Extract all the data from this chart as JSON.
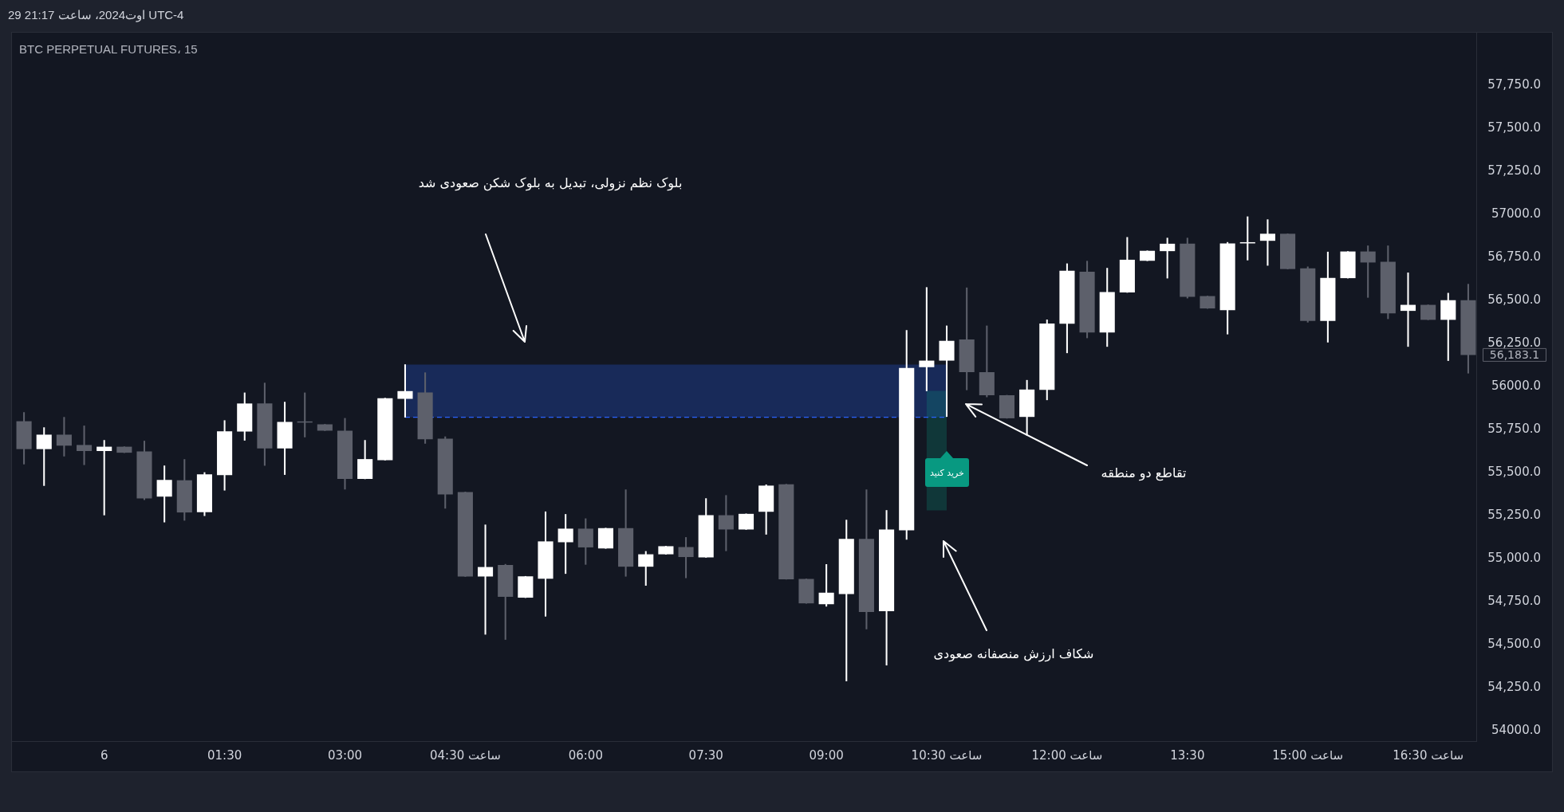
{
  "chart_data": {
    "type": "candlestick",
    "title": "BTC PERPETUAL FUTURES، 15",
    "x": [
      "2024-08-05T23:00",
      "2024-08-05T23:15",
      "2024-08-05T23:30",
      "2024-08-05T23:45",
      "2024-08-06T00:00",
      "2024-08-06T00:15",
      "2024-08-06T00:30",
      "2024-08-06T00:45",
      "2024-08-06T01:00",
      "2024-08-06T01:15",
      "2024-08-06T01:30",
      "2024-08-06T01:45",
      "2024-08-06T02:00",
      "2024-08-06T02:15",
      "2024-08-06T02:30",
      "2024-08-06T02:45",
      "2024-08-06T03:00",
      "2024-08-06T03:15",
      "2024-08-06T03:30",
      "2024-08-06T03:45",
      "2024-08-06T04:00",
      "2024-08-06T04:15",
      "2024-08-06T04:30",
      "2024-08-06T04:45",
      "2024-08-06T05:00",
      "2024-08-06T05:15",
      "2024-08-06T05:30",
      "2024-08-06T05:45",
      "2024-08-06T06:00",
      "2024-08-06T06:15",
      "2024-08-06T06:30",
      "2024-08-06T06:45",
      "2024-08-06T07:00",
      "2024-08-06T07:15",
      "2024-08-06T07:30",
      "2024-08-06T07:45",
      "2024-08-06T08:00",
      "2024-08-06T08:15",
      "2024-08-06T08:30",
      "2024-08-06T08:45",
      "2024-08-06T09:00",
      "2024-08-06T09:15",
      "2024-08-06T09:30",
      "2024-08-06T09:45",
      "2024-08-06T10:00",
      "2024-08-06T10:15",
      "2024-08-06T10:30",
      "2024-08-06T10:45",
      "2024-08-06T11:00",
      "2024-08-06T11:15",
      "2024-08-06T11:30",
      "2024-08-06T11:45",
      "2024-08-06T12:00",
      "2024-08-06T12:15",
      "2024-08-06T12:30",
      "2024-08-06T12:45",
      "2024-08-06T13:00",
      "2024-08-06T13:15",
      "2024-08-06T13:30",
      "2024-08-06T13:45",
      "2024-08-06T14:00",
      "2024-08-06T14:15",
      "2024-08-06T14:30",
      "2024-08-06T14:45",
      "2024-08-06T15:00",
      "2024-08-06T15:15",
      "2024-08-06T15:30",
      "2024-08-06T15:45",
      "2024-08-06T16:00",
      "2024-08-06T16:15",
      "2024-08-06T16:30",
      "2024-08-06T16:45",
      "2024-08-06T17:00"
    ],
    "ohlc": [
      [
        55798,
        55849,
        55549,
        55636
      ],
      [
        55636,
        55761,
        55424,
        55720
      ],
      [
        55720,
        55821,
        55595,
        55656
      ],
      [
        55660,
        55771,
        55545,
        55625
      ],
      [
        55625,
        55687,
        55253,
        55650
      ],
      [
        55650,
        55650,
        55615,
        55615
      ],
      [
        55623,
        55683,
        55342,
        55350
      ],
      [
        55360,
        55539,
        55212,
        55457
      ],
      [
        55455,
        55576,
        55222,
        55268
      ],
      [
        55270,
        55500,
        55249,
        55490
      ],
      [
        55485,
        55802,
        55397,
        55740
      ],
      [
        55738,
        55963,
        55687,
        55901
      ],
      [
        55901,
        56020,
        55541,
        55640
      ],
      [
        55640,
        55909,
        55488,
        55794
      ],
      [
        55794,
        55963,
        55706,
        55790
      ],
      [
        55780,
        55780,
        55743,
        55743
      ],
      [
        55743,
        55815,
        55403,
        55463
      ],
      [
        55463,
        55687,
        55463,
        55578
      ],
      [
        55572,
        55932,
        55572,
        55932
      ],
      [
        55928,
        56127,
        55821,
        55973
      ],
      [
        55965,
        56080,
        55669,
        55693
      ],
      [
        55697,
        55708,
        55292,
        55373
      ],
      [
        55387,
        55387,
        54896,
        54896
      ],
      [
        54896,
        55196,
        54560,
        54951
      ],
      [
        54963,
        54967,
        54530,
        54778
      ],
      [
        54773,
        54897,
        54773,
        54897
      ],
      [
        54883,
        55272,
        54665,
        55100
      ],
      [
        55095,
        55257,
        54913,
        55174
      ],
      [
        55174,
        55232,
        54966,
        55065
      ],
      [
        55059,
        55177,
        55059,
        55177
      ],
      [
        55177,
        55400,
        54897,
        54953
      ],
      [
        54953,
        55042,
        54844,
        55025
      ],
      [
        55025,
        55072,
        55025,
        55072
      ],
      [
        55067,
        55123,
        54888,
        55009
      ],
      [
        55007,
        55349,
        55007,
        55252
      ],
      [
        55252,
        55367,
        55045,
        55169
      ],
      [
        55169,
        55260,
        55169,
        55260
      ],
      [
        55272,
        55429,
        55141,
        55424
      ],
      [
        55432,
        55432,
        54880,
        54880
      ],
      [
        54882,
        54882,
        54740,
        54740
      ],
      [
        54735,
        54966,
        54723,
        54802
      ],
      [
        54794,
        55224,
        54289,
        55115
      ],
      [
        55115,
        55400,
        54591,
        54690
      ],
      [
        54695,
        55280,
        54381,
        55169
      ],
      [
        55164,
        56326,
        55111,
        56107
      ],
      [
        56112,
        56575,
        55974,
        56150
      ],
      [
        56150,
        56352,
        55825,
        56265
      ],
      [
        56273,
        56573,
        55980,
        56083
      ],
      [
        56083,
        56352,
        55939,
        55949
      ],
      [
        55949,
        55949,
        55815,
        55815
      ],
      [
        55823,
        56036,
        55716,
        55982
      ],
      [
        55980,
        56387,
        55922,
        56366
      ],
      [
        56364,
        56713,
        56195,
        56672
      ],
      [
        56666,
        56728,
        56282,
        56313
      ],
      [
        56313,
        56687,
        56232,
        56548
      ],
      [
        56546,
        56866,
        56546,
        56736
      ],
      [
        56730,
        56788,
        56730,
        56788
      ],
      [
        56786,
        56862,
        56629,
        56829
      ],
      [
        56829,
        56862,
        56513,
        56521
      ],
      [
        56525,
        56525,
        56453,
        56453
      ],
      [
        56443,
        56837,
        56304,
        56831
      ],
      [
        56831,
        56986,
        56734,
        56837
      ],
      [
        56846,
        56969,
        56703,
        56887
      ],
      [
        56887,
        56887,
        56682,
        56682
      ],
      [
        56686,
        56695,
        56373,
        56381
      ],
      [
        56381,
        56781,
        56257,
        56631
      ],
      [
        56629,
        56784,
        56629,
        56784
      ],
      [
        56784,
        56817,
        56517,
        56720
      ],
      [
        56724,
        56817,
        56393,
        56424
      ],
      [
        56439,
        56660,
        56232,
        56474
      ],
      [
        56474,
        56474,
        56387,
        56387
      ],
      [
        56387,
        56542,
        56150,
        56501
      ],
      [
        56501,
        56594,
        56077,
        56183.1
      ]
    ],
    "colors": [
      "#5d606b",
      "#ffffff",
      "#5d606b",
      "#5d606b",
      "#ffffff",
      "#5d606b",
      "#5d606b",
      "#ffffff",
      "#5d606b",
      "#ffffff",
      "#ffffff",
      "#ffffff",
      "#5d606b",
      "#ffffff",
      "#5d606b",
      "#5d606b",
      "#5d606b",
      "#ffffff",
      "#ffffff",
      "#ffffff",
      "#5d606b",
      "#5d606b",
      "#5d606b",
      "#ffffff",
      "#5d606b",
      "#ffffff",
      "#ffffff",
      "#ffffff",
      "#5d606b",
      "#ffffff",
      "#5d606b",
      "#ffffff",
      "#ffffff",
      "#5d606b",
      "#ffffff",
      "#5d606b",
      "#ffffff",
      "#ffffff",
      "#5d606b",
      "#5d606b",
      "#ffffff",
      "#ffffff",
      "#5d606b",
      "#ffffff",
      "#ffffff",
      "#ffffff",
      "#ffffff",
      "#5d606b",
      "#5d606b",
      "#5d606b",
      "#ffffff",
      "#ffffff",
      "#ffffff",
      "#5d606b",
      "#ffffff",
      "#ffffff",
      "#ffffff",
      "#ffffff",
      "#5d606b",
      "#5d606b",
      "#ffffff",
      "#ffffff",
      "#ffffff",
      "#5d606b",
      "#5d606b",
      "#ffffff",
      "#ffffff",
      "#5d606b",
      "#5d606b",
      "#ffffff",
      "#5d606b",
      "#ffffff",
      "#5d606b"
    ],
    "series": [
      {
        "type": "line",
        "x": [
          "2024-08-06T03:45",
          "2024-08-06T10:30"
        ],
        "values": [
          55821,
          55821
        ],
        "lower": [
          55821,
          55821
        ],
        "upper": [
          56127,
          56127
        ],
        "color": "#2962ff",
        "line_style": "dashed"
      },
      {
        "type": "line",
        "x": [
          "2024-08-06T10:15",
          "2024-08-06T10:30"
        ],
        "values": [
          null,
          null
        ],
        "lower": [
          55280,
          55280
        ],
        "upper": [
          55974,
          55974
        ],
        "color": "#089981"
      }
    ],
    "xlim": [
      "2024-08-05T22:51",
      "2024-08-06T17:06"
    ],
    "xticks": [
      {
        "value": "2024-08-06T00:00",
        "label": "6"
      },
      {
        "value": "2024-08-06T01:30",
        "label": "01:30"
      },
      {
        "value": "2024-08-06T03:00",
        "label": "03:00"
      },
      {
        "value": "2024-08-06T04:30",
        "label": "ساعت 04:30"
      },
      {
        "value": "2024-08-06T06:00",
        "label": "06:00"
      },
      {
        "value": "2024-08-06T07:30",
        "label": "07:30"
      },
      {
        "value": "2024-08-06T09:00",
        "label": "09:00"
      },
      {
        "value": "2024-08-06T10:30",
        "label": "ساعت 10:30"
      },
      {
        "value": "2024-08-06T12:00",
        "label": "ساعت 12:00"
      },
      {
        "value": "2024-08-06T13:30",
        "label": "13:30"
      },
      {
        "value": "2024-08-06T15:00",
        "label": "ساعت 15:00"
      },
      {
        "value": "2024-08-06T16:30",
        "label": "ساعت 16:30"
      }
    ],
    "ylim": [
      53940,
      58055
    ],
    "yticks": [
      {
        "value": 54000,
        "label": "54000.0"
      },
      {
        "value": 54250,
        "label": "54,250.0"
      },
      {
        "value": 54500,
        "label": "54,500.0"
      },
      {
        "value": 54750,
        "label": "54,750.0"
      },
      {
        "value": 55000,
        "label": "55,000.0"
      },
      {
        "value": 55250,
        "label": "55,250.0"
      },
      {
        "value": 55500,
        "label": "55,500.0"
      },
      {
        "value": 55750,
        "label": "55,750.0"
      },
      {
        "value": 56000,
        "label": "56000.0"
      },
      {
        "value": 56250,
        "label": "56,250.0"
      },
      {
        "value": 56500,
        "label": "56,500.0"
      },
      {
        "value": 56750,
        "label": "56,750.0"
      },
      {
        "value": 57000,
        "label": "57000.0"
      },
      {
        "value": 57250,
        "label": "57,250.0"
      },
      {
        "value": 57500,
        "label": "57,500.0"
      },
      {
        "value": 57750,
        "label": "57,750.0"
      }
    ],
    "annotations": [
      "29 اوت2024، ساعت 21:17 UTC-4",
      "بلوک نظم نزولی، تبدیل به بلوک شکن صعودی شد",
      "تقاطع دو منطقه",
      "شکاف ارزش منصفانه صعودی",
      "خرید کنید",
      {
        "text": "56,183.1",
        "x": "2024-08-06T17:00",
        "y": 56183.1
      }
    ]
  }
}
